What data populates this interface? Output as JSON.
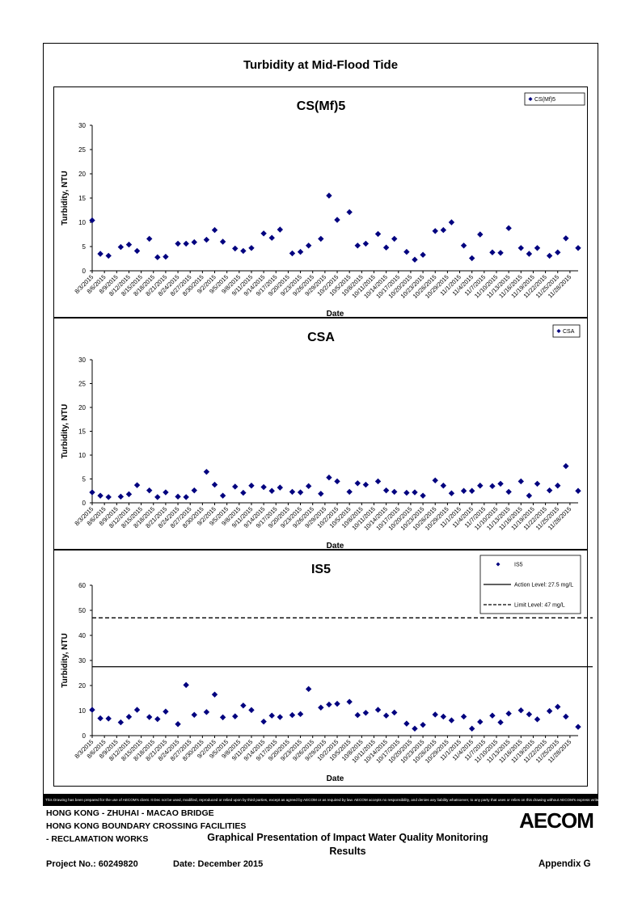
{
  "page_title": "Turbidity at Mid-Flood Tide",
  "colors": {
    "marker": "#00007f",
    "line": "#000000"
  },
  "dates": [
    "8/3/2015",
    "8/6/2015",
    "8/9/2015",
    "8/12/2015",
    "8/15/2015",
    "8/18/2015",
    "8/21/2015",
    "8/24/2015",
    "8/27/2015",
    "8/30/2015",
    "9/2/2015",
    "9/5/2015",
    "9/8/2015",
    "9/11/2015",
    "9/14/2015",
    "9/17/2015",
    "9/20/2015",
    "9/23/2015",
    "9/26/2015",
    "9/29/2015",
    "10/2/2015",
    "10/5/2015",
    "10/8/2015",
    "10/11/2015",
    "10/14/2015",
    "10/17/2015",
    "10/20/2015",
    "10/23/2015",
    "10/26/2015",
    "10/29/2015",
    "11/1/2015",
    "11/4/2015",
    "11/7/2015",
    "11/10/2015",
    "11/13/2015",
    "11/16/2015",
    "11/19/2015",
    "11/22/2015",
    "11/25/2015",
    "11/28/2015"
  ],
  "chart_data": [
    {
      "type": "scatter",
      "title": "CS(Mf)5",
      "xlabel": "Date",
      "ylabel": "Turbidity, NTU",
      "ylim": [
        0,
        30
      ],
      "yticks": [
        0,
        5,
        10,
        15,
        20,
        25,
        30
      ],
      "xrange": [
        "8/3/2015",
        "11/30/2015"
      ],
      "legend": {
        "position": "top-right",
        "entries": [
          "CS(Mf)5"
        ]
      },
      "grid": false,
      "series": [
        {
          "name": "CS(Mf)5",
          "x": [
            "8/3/2015",
            "8/5/2015",
            "8/7/2015",
            "8/10/2015",
            "8/12/2015",
            "8/14/2015",
            "8/17/2015",
            "8/19/2015",
            "8/21/2015",
            "8/24/2015",
            "8/26/2015",
            "8/28/2015",
            "8/31/2015",
            "9/2/2015",
            "9/4/2015",
            "9/7/2015",
            "9/9/2015",
            "9/11/2015",
            "9/14/2015",
            "9/16/2015",
            "9/18/2015",
            "9/21/2015",
            "9/23/2015",
            "9/25/2015",
            "9/28/2015",
            "9/30/2015",
            "10/2/2015",
            "10/5/2015",
            "10/7/2015",
            "10/9/2015",
            "10/12/2015",
            "10/14/2015",
            "10/16/2015",
            "10/19/2015",
            "10/21/2015",
            "10/23/2015",
            "10/26/2015",
            "10/28/2015",
            "10/30/2015",
            "11/2/2015",
            "11/4/2015",
            "11/6/2015",
            "11/9/2015",
            "11/11/2015",
            "11/13/2015",
            "11/16/2015",
            "11/18/2015",
            "11/20/2015",
            "11/23/2015",
            "11/25/2015",
            "11/27/2015",
            "11/30/2015"
          ],
          "y": [
            10.4,
            3.5,
            3.1,
            4.9,
            5.4,
            4.1,
            6.6,
            2.8,
            2.9,
            5.6,
            5.6,
            5.9,
            6.4,
            8.4,
            6.0,
            4.6,
            4.1,
            4.7,
            7.7,
            6.8,
            8.5,
            3.6,
            3.9,
            5.2,
            6.6,
            15.5,
            10.5,
            12.1,
            5.2,
            5.6,
            7.6,
            4.8,
            6.6,
            3.9,
            2.3,
            3.3,
            8.2,
            8.4,
            10.0,
            5.2,
            2.6,
            7.5,
            3.8,
            3.7,
            8.8,
            4.7,
            3.5,
            4.7,
            3.1,
            3.8,
            6.7,
            4.7
          ]
        }
      ]
    },
    {
      "type": "scatter",
      "title": "CSA",
      "xlabel": "Date",
      "ylabel": "Turbidity, NTU",
      "ylim": [
        0,
        30
      ],
      "yticks": [
        0,
        5,
        10,
        15,
        20,
        25,
        30
      ],
      "xrange": [
        "8/3/2015",
        "11/30/2015"
      ],
      "legend": {
        "position": "top-right",
        "entries": [
          "CSA"
        ]
      },
      "grid": false,
      "series": [
        {
          "name": "CSA",
          "x": [
            "8/3/2015",
            "8/5/2015",
            "8/7/2015",
            "8/10/2015",
            "8/12/2015",
            "8/14/2015",
            "8/17/2015",
            "8/19/2015",
            "8/21/2015",
            "8/24/2015",
            "8/26/2015",
            "8/28/2015",
            "8/31/2015",
            "9/2/2015",
            "9/4/2015",
            "9/7/2015",
            "9/9/2015",
            "9/11/2015",
            "9/14/2015",
            "9/16/2015",
            "9/18/2015",
            "9/21/2015",
            "9/23/2015",
            "9/25/2015",
            "9/28/2015",
            "9/30/2015",
            "10/2/2015",
            "10/5/2015",
            "10/7/2015",
            "10/9/2015",
            "10/12/2015",
            "10/14/2015",
            "10/16/2015",
            "10/19/2015",
            "10/21/2015",
            "10/23/2015",
            "10/26/2015",
            "10/28/2015",
            "10/30/2015",
            "11/2/2015",
            "11/4/2015",
            "11/6/2015",
            "11/9/2015",
            "11/11/2015",
            "11/13/2015",
            "11/16/2015",
            "11/18/2015",
            "11/20/2015",
            "11/23/2015",
            "11/25/2015",
            "11/27/2015",
            "11/30/2015"
          ],
          "y": [
            2.2,
            1.5,
            1.2,
            1.3,
            1.8,
            3.7,
            2.6,
            1.2,
            2.2,
            1.3,
            1.2,
            2.6,
            6.5,
            3.8,
            1.5,
            3.4,
            2.1,
            3.6,
            3.3,
            2.5,
            3.2,
            2.3,
            2.2,
            3.5,
            1.9,
            5.3,
            4.5,
            2.3,
            4.1,
            3.8,
            4.5,
            2.6,
            2.3,
            2.1,
            2.2,
            1.5,
            4.7,
            3.6,
            2.0,
            2.5,
            2.5,
            3.6,
            3.5,
            4.0,
            2.3,
            4.5,
            1.5,
            4.0,
            2.6,
            3.6,
            7.7,
            2.5
          ]
        }
      ]
    },
    {
      "type": "scatter",
      "title": "IS5",
      "xlabel": "Date",
      "ylabel": "Turbidity, NTU",
      "ylim": [
        0,
        60
      ],
      "yticks": [
        0,
        10,
        20,
        30,
        40,
        50,
        60
      ],
      "xrange": [
        "8/3/2015",
        "11/30/2015"
      ],
      "legend": {
        "position": "top-right",
        "entries": [
          "IS5",
          "Action Level: 27.5 mg/L",
          "Limit Level: 47 mg/L"
        ]
      },
      "grid": false,
      "series": [
        {
          "name": "IS5",
          "x": [
            "8/3/2015",
            "8/5/2015",
            "8/7/2015",
            "8/10/2015",
            "8/12/2015",
            "8/14/2015",
            "8/17/2015",
            "8/19/2015",
            "8/21/2015",
            "8/24/2015",
            "8/26/2015",
            "8/28/2015",
            "8/31/2015",
            "9/2/2015",
            "9/4/2015",
            "9/7/2015",
            "9/9/2015",
            "9/11/2015",
            "9/14/2015",
            "9/16/2015",
            "9/18/2015",
            "9/21/2015",
            "9/23/2015",
            "9/25/2015",
            "9/28/2015",
            "9/30/2015",
            "10/2/2015",
            "10/5/2015",
            "10/7/2015",
            "10/9/2015",
            "10/12/2015",
            "10/14/2015",
            "10/16/2015",
            "10/19/2015",
            "10/21/2015",
            "10/23/2015",
            "10/26/2015",
            "10/28/2015",
            "10/30/2015",
            "11/2/2015",
            "11/4/2015",
            "11/6/2015",
            "11/9/2015",
            "11/11/2015",
            "11/13/2015",
            "11/16/2015",
            "11/18/2015",
            "11/20/2015",
            "11/23/2015",
            "11/25/2015",
            "11/27/2015",
            "11/30/2015"
          ],
          "y": [
            10.3,
            6.9,
            6.8,
            5.3,
            7.5,
            10.3,
            7.4,
            6.6,
            9.6,
            4.6,
            20.2,
            8.3,
            9.4,
            16.4,
            7.3,
            7.7,
            12.0,
            10.2,
            5.6,
            8.0,
            7.4,
            8.2,
            8.6,
            18.6,
            11.2,
            12.4,
            12.7,
            13.5,
            8.2,
            9.1,
            10.3,
            8.0,
            9.2,
            4.8,
            2.8,
            4.3,
            8.4,
            7.6,
            6.1,
            7.6,
            2.8,
            5.5,
            8.0,
            5.3,
            8.8,
            10.1,
            8.5,
            6.5,
            9.8,
            11.5,
            7.6,
            3.5
          ]
        },
        {
          "name": "Action Level: 27.5 mg/L",
          "style": "solid",
          "y": 27.5
        },
        {
          "name": "Limit Level: 47 mg/L",
          "style": "dashed",
          "y": 47
        }
      ]
    }
  ],
  "footer": {
    "disclaimer": "This Drawing has been prepared for the use of AECOM's client. It Dec not be used, modified, reproduced or relied upon by third parties, except as agreed by AECOM or as required by law. AECOM accepts no responsibility, and denies any liability whatsoever, to any party that uses or relies on this drawing without AECOM's express written consent.",
    "line1": "HONG KONG - ZHUHAI - MACAO BRIDGE",
    "line2": "HONG KONG BOUNDARY CROSSING FACILITIES",
    "line3": "- RECLAMATION WORKS",
    "description": "Graphical Presentation of Impact Water Quality Monitoring Results",
    "project": "Project No.: 60249820",
    "date": "Date: December 2015",
    "appendix": "Appendix G",
    "logo_text": "AECOM"
  }
}
